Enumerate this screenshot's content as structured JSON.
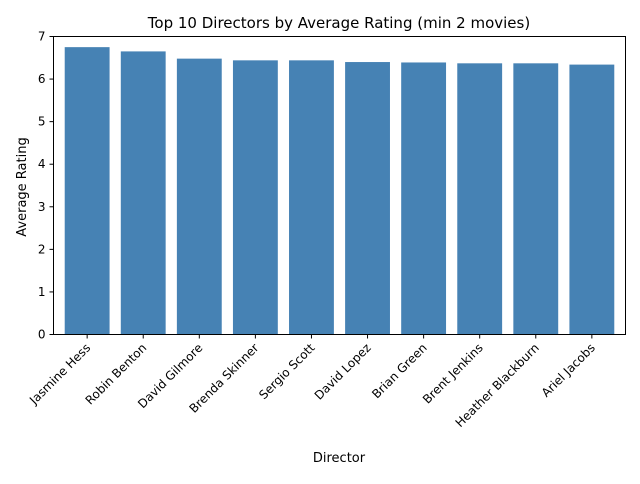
{
  "chart_data": {
    "type": "bar",
    "title": "Top 10 Directors by Average Rating (min 2 movies)",
    "xlabel": "Director",
    "ylabel": "Average Rating",
    "categories": [
      "Jasmine Hess",
      "Robin Benton",
      "David Gilmore",
      "Brenda Skinner",
      "Sergio Scott",
      "David Lopez",
      "Brian Green",
      "Brent Jenkins",
      "Heather Blackburn",
      "Ariel Jacobs"
    ],
    "values": [
      6.75,
      6.65,
      6.48,
      6.44,
      6.44,
      6.4,
      6.39,
      6.37,
      6.37,
      6.34
    ],
    "ylim": [
      0,
      7
    ],
    "yticks": [
      0,
      1,
      2,
      3,
      4,
      5,
      6,
      7
    ],
    "bar_color": "#4682b4",
    "grid": false,
    "legend": "none"
  }
}
